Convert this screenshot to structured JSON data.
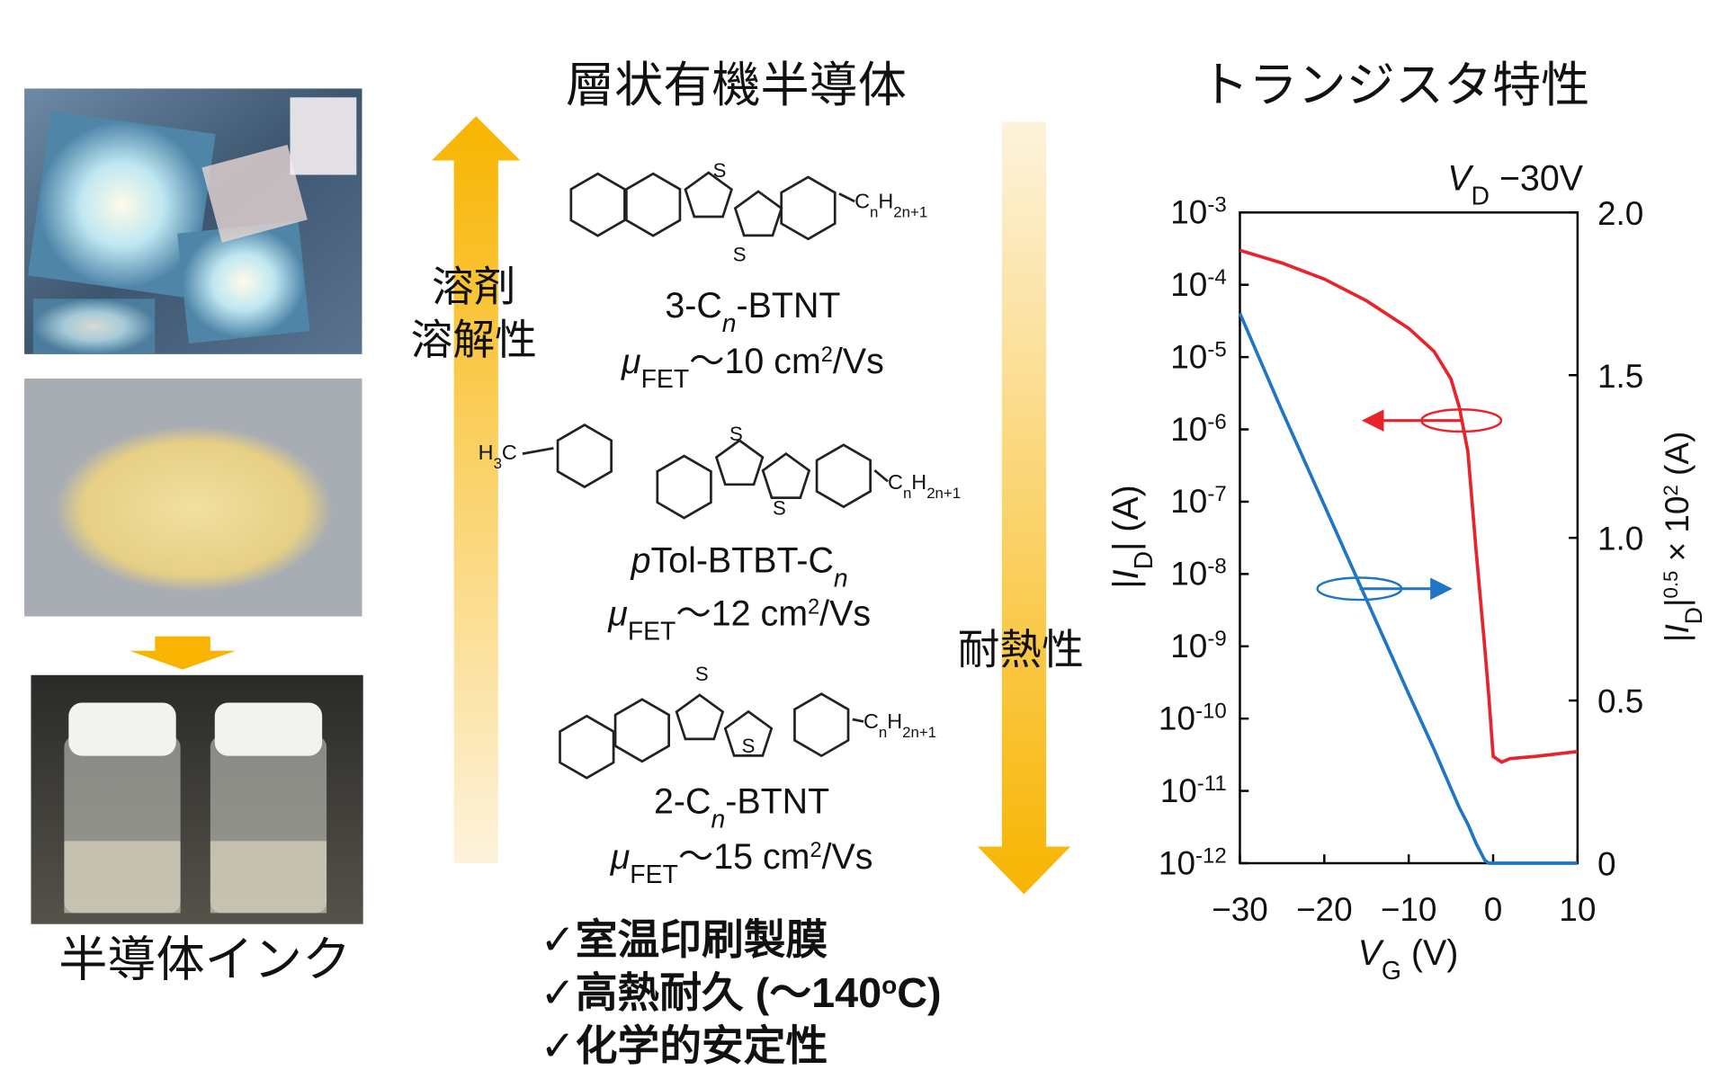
{
  "left_panel": {
    "caption": "半導体インク"
  },
  "center_panel": {
    "title": "層状有機半導体",
    "solubility_label": [
      "溶剤",
      "溶解性"
    ],
    "heat_label": "耐熱性",
    "compounds": [
      {
        "name": [
          {
            "text": "3-C"
          },
          {
            "text": "n",
            "sub": true,
            "italic": true
          },
          {
            "text": "-BTNT"
          }
        ],
        "mobility": [
          {
            "text": "μ",
            "italic": true
          },
          {
            "text": "FET",
            "sub": true
          },
          {
            "text": "～10 cm"
          },
          {
            "text": "2",
            "sup": true
          },
          {
            "text": "/Vs"
          }
        ],
        "s_atoms": [
          "S",
          "S"
        ],
        "substituent": [
          {
            "text": "C"
          },
          {
            "text": "n",
            "sub": true
          },
          {
            "text": "H"
          },
          {
            "text": "2n+1",
            "sub": true
          }
        ]
      },
      {
        "name": [
          {
            "text": "p",
            "italic": true
          },
          {
            "text": "Tol-BTBT-C"
          },
          {
            "text": "n",
            "sub": true,
            "italic": true
          }
        ],
        "mobility": [
          {
            "text": "μ",
            "italic": true
          },
          {
            "text": "FET",
            "sub": true
          },
          {
            "text": "～12 cm"
          },
          {
            "text": "2",
            "sup": true
          },
          {
            "text": "/Vs"
          }
        ],
        "s_atoms": [
          "S",
          "S"
        ],
        "head": [
          {
            "text": "H"
          },
          {
            "text": "3",
            "sub": true
          },
          {
            "text": "C"
          }
        ],
        "substituent": [
          {
            "text": "C"
          },
          {
            "text": "n",
            "sub": true
          },
          {
            "text": "H"
          },
          {
            "text": "2n+1",
            "sub": true
          }
        ]
      },
      {
        "name": [
          {
            "text": "2-C"
          },
          {
            "text": "n",
            "sub": true,
            "italic": true
          },
          {
            "text": "-BTNT"
          }
        ],
        "mobility": [
          {
            "text": "μ",
            "italic": true
          },
          {
            "text": "FET",
            "sub": true
          },
          {
            "text": "～15 cm"
          },
          {
            "text": "2",
            "sup": true
          },
          {
            "text": "/Vs"
          }
        ],
        "s_atoms": [
          "S",
          "S"
        ],
        "substituent": [
          {
            "text": "C"
          },
          {
            "text": "n",
            "sub": true
          },
          {
            "text": "H"
          },
          {
            "text": "2n+1",
            "sub": true
          }
        ]
      }
    ],
    "features": [
      [
        {
          "text": "✓室温印刷製膜"
        }
      ],
      [
        {
          "text": "✓高熱耐久 (～140"
        },
        {
          "text": "o",
          "sup": true
        },
        {
          "text": "C)"
        }
      ],
      [
        {
          "text": "✓化学的安定性"
        }
      ]
    ]
  },
  "chart_data": {
    "type": "line",
    "title": "トランジスタ特性",
    "annotation": [
      {
        "text": "V",
        "italic": true
      },
      {
        "text": "D",
        "sub": true
      },
      {
        "text": " −30V"
      }
    ],
    "xlabel": [
      {
        "text": "V",
        "italic": true
      },
      {
        "text": "G",
        "sub": true
      },
      {
        "text": " (V)"
      }
    ],
    "ylabel": [
      {
        "text": "|"
      },
      {
        "text": "I",
        "italic": true
      },
      {
        "text": "D",
        "sub": true
      },
      {
        "text": "| (A)"
      }
    ],
    "y2label": [
      {
        "text": "|"
      },
      {
        "text": "I",
        "italic": true
      },
      {
        "text": "D",
        "sub": true
      },
      {
        "text": "|"
      },
      {
        "text": "0.5",
        "sup": true
      },
      {
        "text": " × 10"
      },
      {
        "text": "2",
        "sup": true
      },
      {
        "text": " (A)"
      }
    ],
    "x": [
      -30,
      -25,
      -20,
      -15,
      -10,
      -7,
      -5,
      -4,
      -3,
      -2,
      -1,
      -0.5,
      0,
      1,
      2,
      5,
      10
    ],
    "series": [
      {
        "color": "#e8242b",
        "axis": "y",
        "values": [
          0.0003,
          0.0002,
          0.00012,
          6e-05,
          2.5e-05,
          1.2e-05,
          5e-06,
          2e-06,
          5e-07,
          2e-08,
          1e-09,
          2e-10,
          3e-11,
          2.5e-11,
          2.8e-11,
          3e-11,
          3.5e-11
        ]
      },
      {
        "color": "#1f77c4",
        "axis": "y2",
        "values": [
          1.69,
          1.39,
          1.1,
          0.81,
          0.52,
          0.35,
          0.23,
          0.17,
          0.12,
          0.06,
          0.01,
          0,
          0,
          0,
          0,
          0,
          0
        ]
      }
    ],
    "xlim": [
      -30,
      10
    ],
    "xticks": [
      {
        "value": -30,
        "label": "−30"
      },
      {
        "value": -20,
        "label": "−20"
      },
      {
        "value": -10,
        "label": "−10"
      },
      0,
      10
    ],
    "ylog": true,
    "ylim": [
      1e-12,
      0.001
    ],
    "yticks": [
      {
        "value": 0.001,
        "label": "10-3"
      },
      {
        "value": 0.0001,
        "label": "10-4"
      },
      {
        "value": 1e-05,
        "label": "10-5"
      },
      {
        "value": 1e-06,
        "label": "10-6"
      },
      {
        "value": 1e-07,
        "label": "10-7"
      },
      {
        "value": 1e-08,
        "label": "10-8"
      },
      {
        "value": 1e-09,
        "label": "10-9"
      },
      {
        "value": 1e-10,
        "label": "10-10"
      },
      {
        "value": 1e-11,
        "label": "10-11"
      },
      {
        "value": 1e-12,
        "label": "10-12"
      }
    ],
    "y2lim": [
      0,
      2
    ],
    "y2ticks": [
      0,
      0.5,
      {
        "value": 1,
        "label": "1.0"
      },
      1.5,
      {
        "value": 2,
        "label": "2.0"
      }
    ],
    "grid": false
  }
}
